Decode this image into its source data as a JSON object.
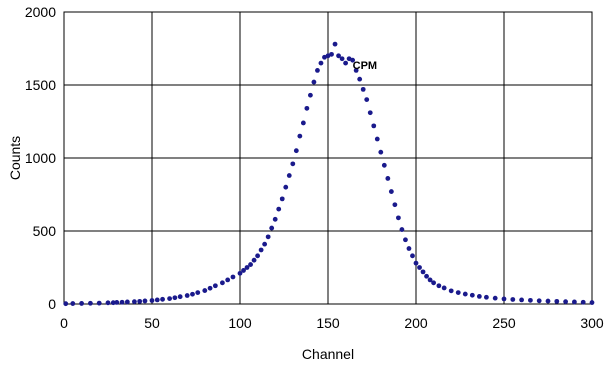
{
  "chart_data": {
    "type": "scatter",
    "title": "",
    "xlabel": "Channel",
    "ylabel": "Counts",
    "xlim": [
      0,
      300
    ],
    "ylim": [
      0,
      2000
    ],
    "x_ticks": [
      0,
      50,
      100,
      150,
      200,
      250,
      300
    ],
    "y_ticks": [
      0,
      500,
      1000,
      1500,
      2000
    ],
    "grid": true,
    "annotation": "CPM",
    "marker_color": "#1a1a8c",
    "series": [
      {
        "name": "",
        "x": [
          1,
          5,
          10,
          15,
          20,
          25,
          28,
          30,
          33,
          36,
          40,
          43,
          46,
          50,
          53,
          56,
          60,
          63,
          66,
          70,
          73,
          76,
          80,
          83,
          86,
          90,
          93,
          96,
          100,
          102,
          104,
          106,
          108,
          110,
          112,
          114,
          116,
          118,
          120,
          122,
          124,
          126,
          128,
          130,
          132,
          134,
          136,
          138,
          140,
          142,
          144,
          146,
          148,
          150,
          152,
          154,
          156,
          158,
          160,
          162,
          164,
          166,
          168,
          170,
          172,
          174,
          176,
          178,
          180,
          182,
          184,
          186,
          188,
          190,
          192,
          194,
          196,
          198,
          200,
          202,
          204,
          206,
          208,
          210,
          213,
          216,
          220,
          224,
          228,
          232,
          236,
          240,
          245,
          250,
          255,
          260,
          265,
          270,
          275,
          280,
          285,
          290,
          295,
          300
        ],
        "y": [
          2,
          3,
          4,
          5,
          6,
          8,
          9,
          11,
          12,
          14,
          16,
          18,
          21,
          24,
          28,
          32,
          37,
          43,
          50,
          58,
          67,
          78,
          92,
          108,
          125,
          145,
          165,
          185,
          210,
          230,
          250,
          270,
          300,
          330,
          370,
          410,
          460,
          520,
          580,
          650,
          720,
          800,
          880,
          960,
          1050,
          1150,
          1240,
          1340,
          1430,
          1520,
          1600,
          1650,
          1690,
          1700,
          1710,
          1780,
          1700,
          1680,
          1650,
          1680,
          1670,
          1600,
          1540,
          1470,
          1400,
          1310,
          1220,
          1130,
          1040,
          950,
          860,
          770,
          680,
          590,
          510,
          440,
          380,
          330,
          280,
          250,
          220,
          190,
          165,
          145,
          125,
          110,
          90,
          78,
          68,
          60,
          52,
          46,
          40,
          35,
          31,
          28,
          25,
          22,
          20,
          18,
          16,
          14,
          12,
          10
        ]
      }
    ]
  }
}
